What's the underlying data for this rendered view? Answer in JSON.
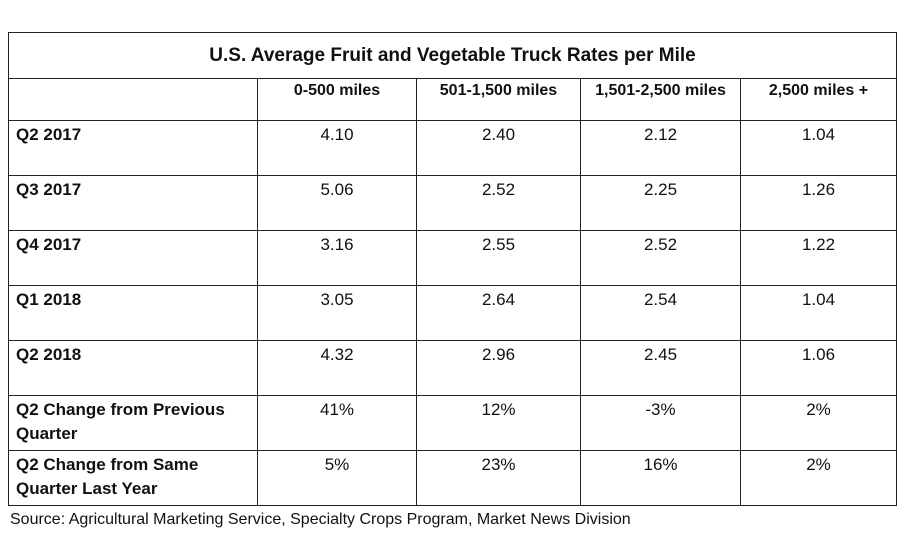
{
  "chart_data": {
    "type": "table",
    "title": "U.S. Average Fruit and Vegetable Truck Rates per Mile",
    "columns": [
      "",
      "0-500 miles",
      "501-1,500 miles",
      "1,501-2,500 miles",
      "2,500 miles +"
    ],
    "rows": [
      {
        "label": "Q2 2017",
        "values": [
          "4.10",
          "2.40",
          "2.12",
          "1.04"
        ]
      },
      {
        "label": "Q3 2017",
        "values": [
          "5.06",
          "2.52",
          "2.25",
          "1.26"
        ]
      },
      {
        "label": "Q4 2017",
        "values": [
          "3.16",
          "2.55",
          "2.52",
          "1.22"
        ]
      },
      {
        "label": "Q1 2018",
        "values": [
          "3.05",
          "2.64",
          "2.54",
          "1.04"
        ]
      },
      {
        "label": "Q2 2018",
        "values": [
          "4.32",
          "2.96",
          "2.45",
          "1.06"
        ]
      },
      {
        "label": "Q2 Change from Previous Quarter",
        "values": [
          "41%",
          "12%",
          "-3%",
          "2%"
        ]
      },
      {
        "label": "Q2 Change from Same Quarter Last Year",
        "values": [
          "5%",
          "23%",
          "16%",
          "2%"
        ]
      }
    ],
    "source": "Source: Agricultural Marketing Service, Specialty Crops Program, Market News Division"
  }
}
